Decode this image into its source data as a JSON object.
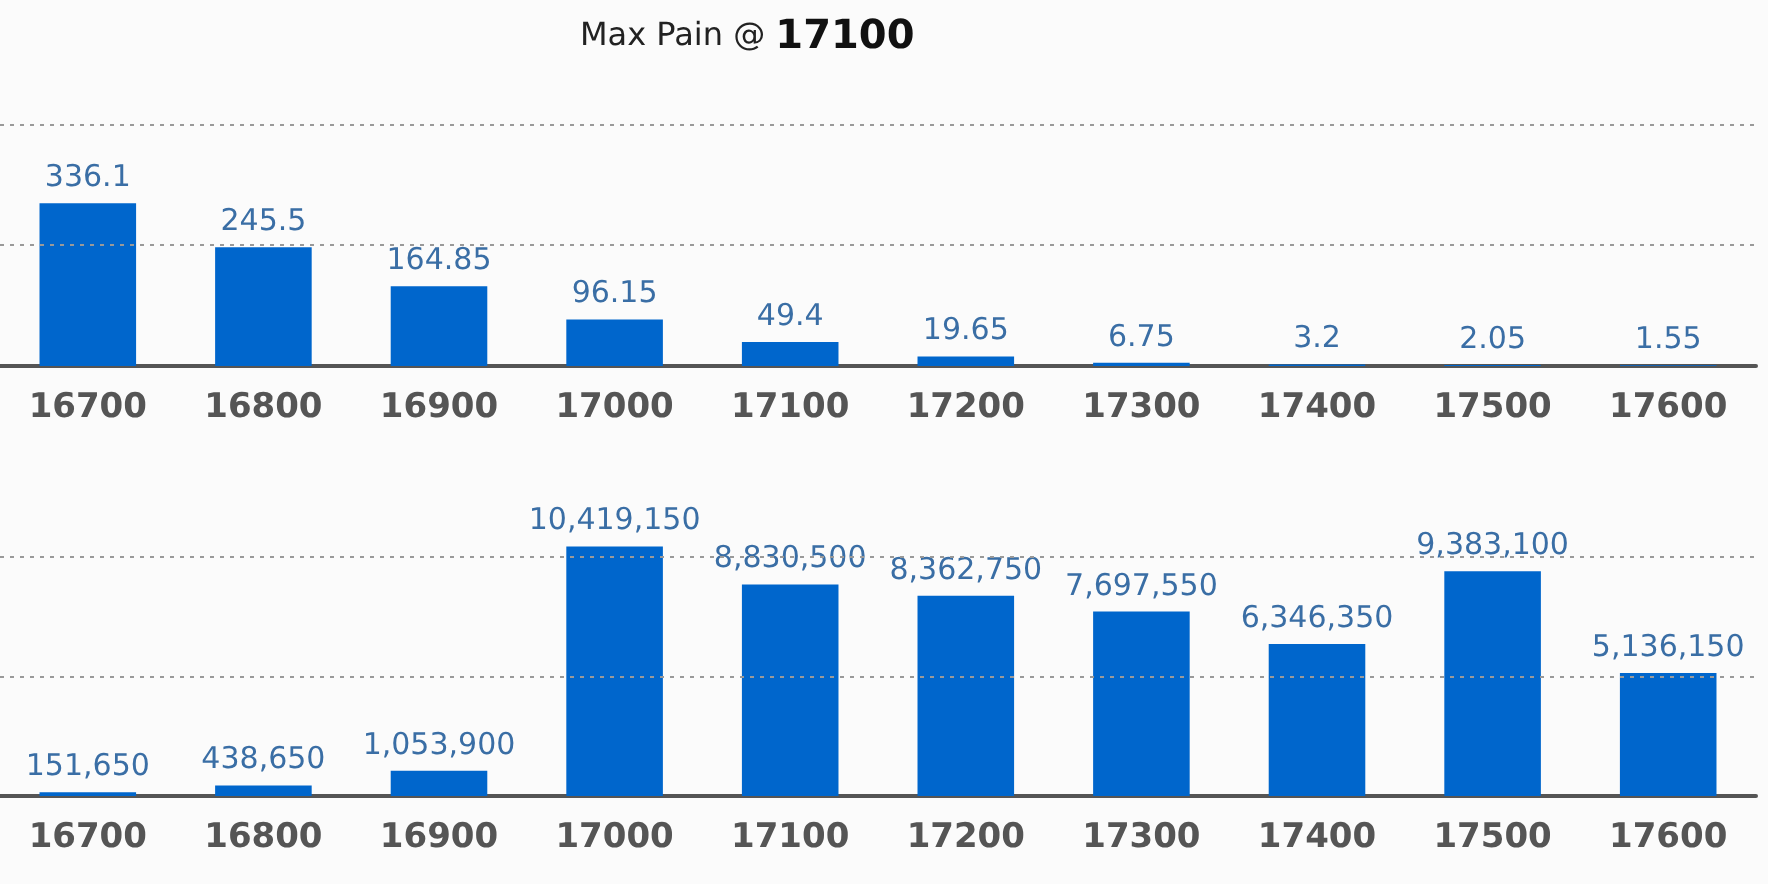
{
  "chart_data": [
    {
      "type": "bar",
      "title": "Max Pain @ 17100",
      "categories": [
        "16700",
        "16800",
        "16900",
        "17000",
        "17100",
        "17200",
        "17300",
        "17400",
        "17500",
        "17600"
      ],
      "values": [
        336.1,
        245.5,
        164.85,
        96.15,
        49.4,
        19.65,
        6.75,
        3.2,
        2.05,
        1.55
      ],
      "color": "#0066cc",
      "data_labels": true,
      "ylim": [
        0,
        500
      ],
      "ref_lines": [
        {
          "axis": "y",
          "value": 250,
          "color": "#999999",
          "line_style": "dotted"
        },
        {
          "axis": "y",
          "value": 500,
          "color": "#999999",
          "line_style": "dotted"
        }
      ],
      "tick_labels": "x"
    },
    {
      "type": "bar",
      "categories": [
        "16700",
        "16800",
        "16900",
        "17000",
        "17100",
        "17200",
        "17300",
        "17400",
        "17500",
        "17600"
      ],
      "values": [
        151650,
        438650,
        1053900,
        10419150,
        8830500,
        8362750,
        7697550,
        6346350,
        9383100,
        5136150
      ],
      "color": "#0066cc",
      "value_labels": [
        "151,650",
        "438,650",
        "1,053,900",
        "10,419,150",
        "8,830,500",
        "8,362,750",
        "7,697,550",
        "6,346,350",
        "9,383,100",
        "5,136,150"
      ],
      "ref_lines": [
        {
          "axis": "y",
          "value": 5000000,
          "color": "#999999",
          "line_style": "dotted"
        },
        {
          "axis": "y",
          "value": 10000000,
          "color": "#999999",
          "line_style": "dotted"
        }
      ],
      "tick_labels": "x"
    }
  ]
}
